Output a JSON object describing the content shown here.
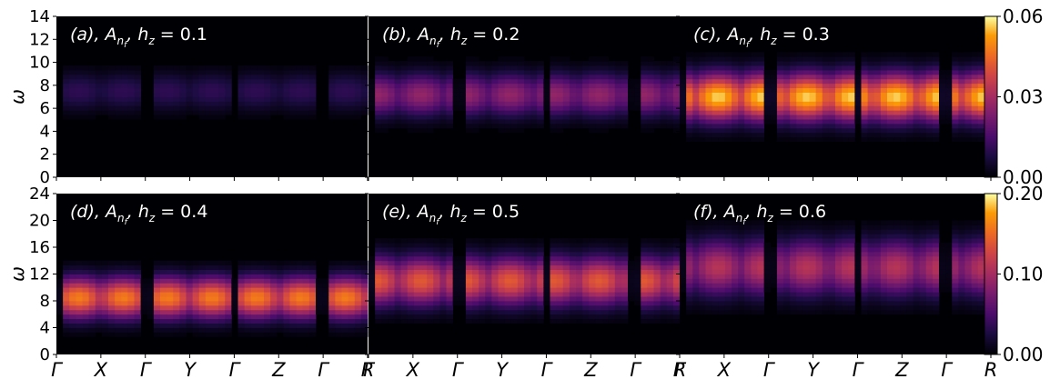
{
  "chart_data": {
    "type": "heatmap",
    "k_path_labels": [
      "Γ",
      "X",
      "Γ",
      "Y",
      "Γ",
      "Z",
      "Γ",
      "R"
    ],
    "rows": [
      {
        "ylabel": "ω",
        "ylim": [
          0,
          14
        ],
        "yticks": [
          "0",
          "2",
          "4",
          "6",
          "8",
          "10",
          "12",
          "14"
        ],
        "colorbar": {
          "range": [
            0,
            0.06
          ],
          "ticks": [
            "0.00",
            "0.03",
            "0.06"
          ]
        },
        "panels": [
          {
            "id": "a",
            "tag": "(a)",
            "quantity": "A",
            "sub": "n",
            "subsub": "f",
            "h_z": "0.1",
            "peak_omega": 7.5,
            "width": 1.6,
            "amplitude": 0.18
          },
          {
            "id": "b",
            "tag": "(b)",
            "quantity": "A",
            "sub": "n",
            "subsub": "f",
            "h_z": "0.2",
            "peak_omega": 7.2,
            "width": 1.8,
            "amplitude": 0.45
          },
          {
            "id": "c",
            "tag": "(c)",
            "quantity": "A",
            "sub": "n",
            "subsub": "f",
            "h_z": "0.3",
            "peak_omega": 7.0,
            "width": 2.0,
            "amplitude": 0.95
          }
        ]
      },
      {
        "ylabel": "ω",
        "ylim": [
          0,
          24
        ],
        "yticks": [
          "0",
          "4",
          "8",
          "12",
          "16",
          "20",
          "24"
        ],
        "colorbar": {
          "range": [
            0,
            0.2
          ],
          "ticks": [
            "0.00",
            "0.10",
            "0.20"
          ]
        },
        "panels": [
          {
            "id": "d",
            "tag": "(d)",
            "quantity": "A",
            "sub": "n",
            "subsub": "f",
            "h_z": "0.4",
            "peak_omega": 8.5,
            "width": 3.0,
            "amplitude": 0.8
          },
          {
            "id": "e",
            "tag": "(e)",
            "quantity": "A",
            "sub": "n",
            "subsub": "f",
            "h_z": "0.5",
            "peak_omega": 11.0,
            "width": 3.5,
            "amplitude": 0.7
          },
          {
            "id": "f",
            "tag": "(f)",
            "quantity": "A",
            "sub": "n",
            "subsub": "f",
            "h_z": "0.6",
            "peak_omega": 13.0,
            "width": 4.0,
            "amplitude": 0.55
          }
        ]
      }
    ]
  }
}
